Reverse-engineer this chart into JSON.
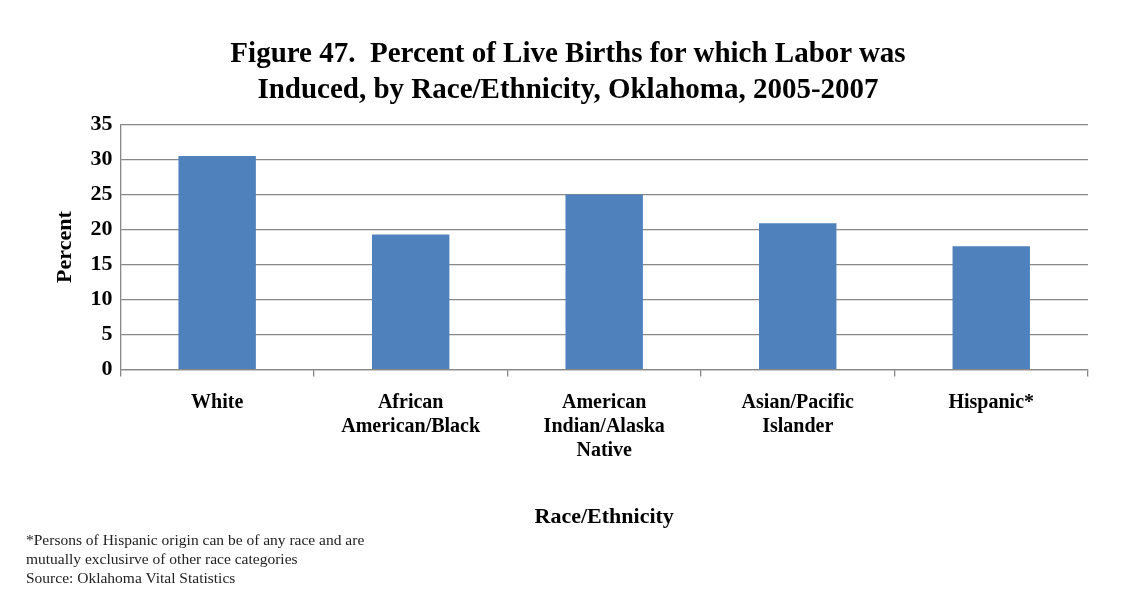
{
  "chart_data": {
    "type": "bar",
    "title": "Figure 47.  Percent of Live Births for which Labor was Induced, by Race/Ethnicity, Oklahoma, 2005-2007",
    "xlabel": "Race/Ethnicity",
    "ylabel": "Percent",
    "categories": [
      "White",
      "African American/Black",
      "American Indian/Alaska Native",
      "Asian/Pacific Islander",
      "Hispanic*"
    ],
    "values": [
      30.5,
      19.3,
      25.0,
      20.9,
      17.6
    ],
    "color": "#4f81bd",
    "ylim": [
      0,
      35
    ],
    "yticks": [
      0,
      5,
      10,
      15,
      20,
      25,
      30,
      35
    ],
    "grid": "y",
    "legend": false,
    "annotations": [
      "*Persons of Hispanic origin can be of any race and are mutually exclusirve of other race categories",
      "Source: Oklahoma Vital Statistics"
    ]
  }
}
